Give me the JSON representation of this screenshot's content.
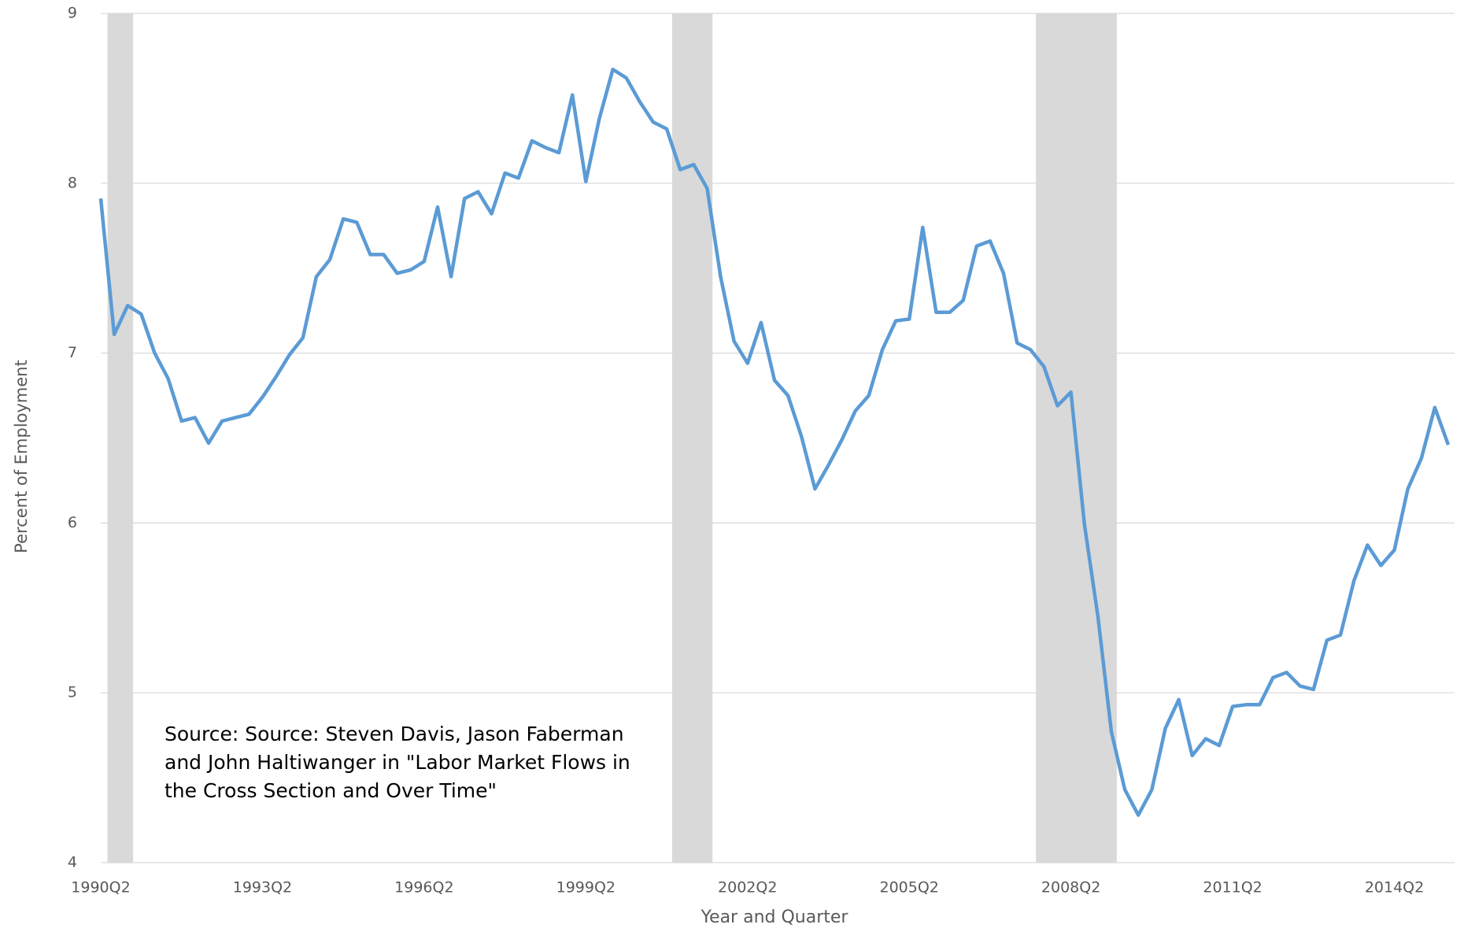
{
  "chart_data": {
    "type": "line",
    "x_label": "Year and Quarter",
    "y_label": "Percent of Employment",
    "annotation": "Source: Source: Steven Davis, Jason Faberman and John Haltiwanger in \"Labor Market Flows in the Cross Section and Over Time\"",
    "categories": [
      "1990Q2",
      null,
      null,
      null,
      null,
      null,
      null,
      null,
      null,
      null,
      null,
      null,
      "1993Q2",
      null,
      null,
      null,
      null,
      null,
      null,
      null,
      null,
      null,
      null,
      null,
      "1996Q2",
      null,
      null,
      null,
      null,
      null,
      null,
      null,
      null,
      null,
      null,
      null,
      "1999Q2",
      null,
      null,
      null,
      null,
      null,
      null,
      null,
      null,
      null,
      null,
      null,
      "2002Q2",
      null,
      null,
      null,
      null,
      null,
      null,
      null,
      null,
      null,
      null,
      null,
      "2005Q2",
      null,
      null,
      null,
      null,
      null,
      null,
      null,
      null,
      null,
      null,
      null,
      "2008Q2",
      null,
      null,
      null,
      null,
      null,
      null,
      null,
      null,
      null,
      null,
      null,
      "2011Q2",
      null,
      null,
      null,
      null,
      null,
      null,
      null,
      null,
      null,
      null,
      null,
      "2014Q2",
      null,
      null,
      null,
      null
    ],
    "series": [
      {
        "name": "Percent of Employment",
        "color": "#5b9bd5",
        "values": [
          7.91,
          7.11,
          7.28,
          7.23,
          7.0,
          6.85,
          6.6,
          6.62,
          6.47,
          6.6,
          6.62,
          6.64,
          6.74,
          6.86,
          6.99,
          7.09,
          7.45,
          7.55,
          7.79,
          7.77,
          7.58,
          7.58,
          7.47,
          7.49,
          7.54,
          7.86,
          7.45,
          7.91,
          7.95,
          7.82,
          8.06,
          8.03,
          8.25,
          8.21,
          8.18,
          8.52,
          8.01,
          8.38,
          8.67,
          8.62,
          8.48,
          8.36,
          8.32,
          8.08,
          8.11,
          7.97,
          7.45,
          7.07,
          6.94,
          7.18,
          6.84,
          6.75,
          6.51,
          6.2,
          6.34,
          6.49,
          6.66,
          6.75,
          7.02,
          7.19,
          7.2,
          7.74,
          7.24,
          7.24,
          7.31,
          7.63,
          7.66,
          7.47,
          7.06,
          7.02,
          6.92,
          6.69,
          6.77,
          5.99,
          5.45,
          4.77,
          4.43,
          4.28,
          4.43,
          4.79,
          4.96,
          4.63,
          4.73,
          4.69,
          4.92,
          4.93,
          4.93,
          5.09,
          5.12,
          5.04,
          5.02,
          5.31,
          5.34,
          5.66,
          5.87,
          5.75,
          5.84,
          6.2,
          6.38,
          6.68,
          6.46
        ]
      }
    ],
    "shaded_periods": [
      {
        "start": 0.5,
        "end": 2.4,
        "color": "#d9d9d9"
      },
      {
        "start": 42.4,
        "end": 45.4,
        "color": "#d9d9d9"
      },
      {
        "start": 69.4,
        "end": 75.4,
        "color": "#d9d9d9"
      }
    ],
    "ylim": [
      4,
      9
    ],
    "yticks": [
      4,
      5,
      6,
      7,
      8,
      9
    ],
    "grid": true
  }
}
